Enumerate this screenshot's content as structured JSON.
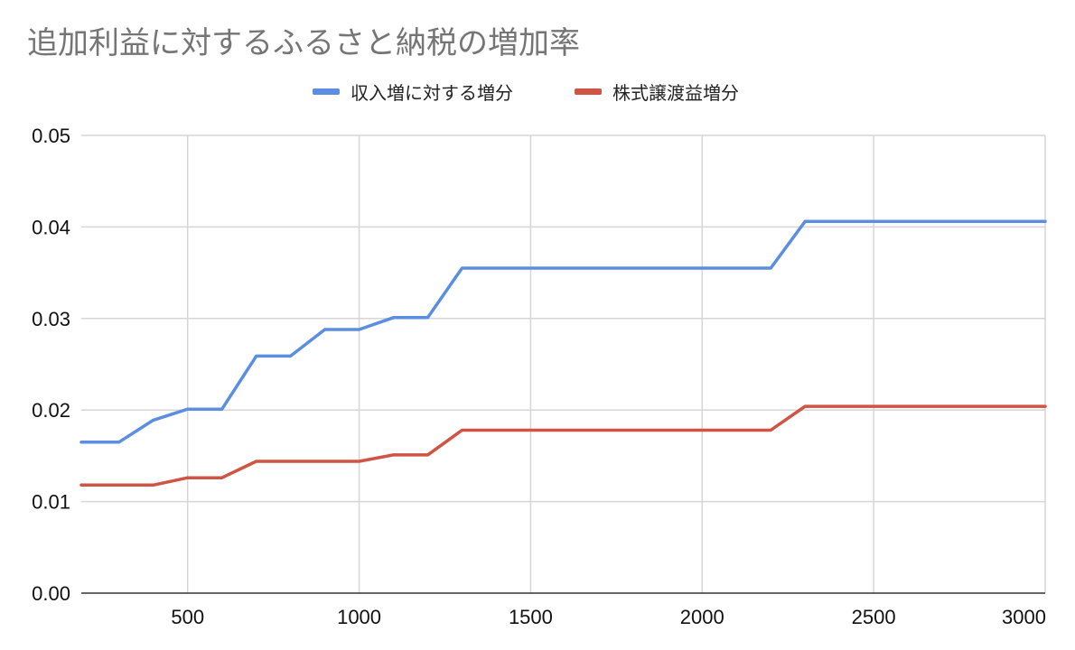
{
  "chart_data": {
    "type": "line",
    "title": "追加利益に対するふるさと納税の増加率",
    "xlabel": "",
    "ylabel": "",
    "xlim": [
      190,
      3000
    ],
    "ylim": [
      0,
      0.05
    ],
    "x_ticks": [
      "500",
      "1000",
      "1500",
      "2000",
      "2500",
      "3000"
    ],
    "y_ticks": [
      "0.00",
      "0.01",
      "0.02",
      "0.03",
      "0.04",
      "0.05"
    ],
    "grid": true,
    "legend_position": "top",
    "series": [
      {
        "name": "収入増に対する増分",
        "color": "#5b8ee0",
        "x": [
          190,
          300,
          400,
          500,
          600,
          700,
          800,
          900,
          1000,
          1100,
          1200,
          1300,
          1400,
          1500,
          1600,
          1700,
          1800,
          1900,
          2000,
          2100,
          2200,
          2300,
          2400,
          2500,
          2600,
          2700,
          2800,
          2900,
          3000
        ],
        "y": [
          0.0165,
          0.0165,
          0.0189,
          0.0201,
          0.0201,
          0.0259,
          0.0259,
          0.0288,
          0.0288,
          0.0301,
          0.0301,
          0.0355,
          0.0355,
          0.0355,
          0.0355,
          0.0355,
          0.0355,
          0.0355,
          0.0355,
          0.0355,
          0.0355,
          0.0406,
          0.0406,
          0.0406,
          0.0406,
          0.0406,
          0.0406,
          0.0406,
          0.0406
        ]
      },
      {
        "name": "株式譲渡益増分",
        "color": "#cf5443",
        "x": [
          190,
          300,
          400,
          500,
          600,
          700,
          800,
          900,
          1000,
          1100,
          1200,
          1300,
          1400,
          1500,
          1600,
          1700,
          1800,
          1900,
          2000,
          2100,
          2200,
          2300,
          2400,
          2500,
          2600,
          2700,
          2800,
          2900,
          3000
        ],
        "y": [
          0.0118,
          0.0118,
          0.0118,
          0.0126,
          0.0126,
          0.0144,
          0.0144,
          0.0144,
          0.0144,
          0.0151,
          0.0151,
          0.0178,
          0.0178,
          0.0178,
          0.0178,
          0.0178,
          0.0178,
          0.0178,
          0.0178,
          0.0178,
          0.0178,
          0.0204,
          0.0204,
          0.0204,
          0.0204,
          0.0204,
          0.0204,
          0.0204,
          0.0204
        ]
      }
    ]
  }
}
